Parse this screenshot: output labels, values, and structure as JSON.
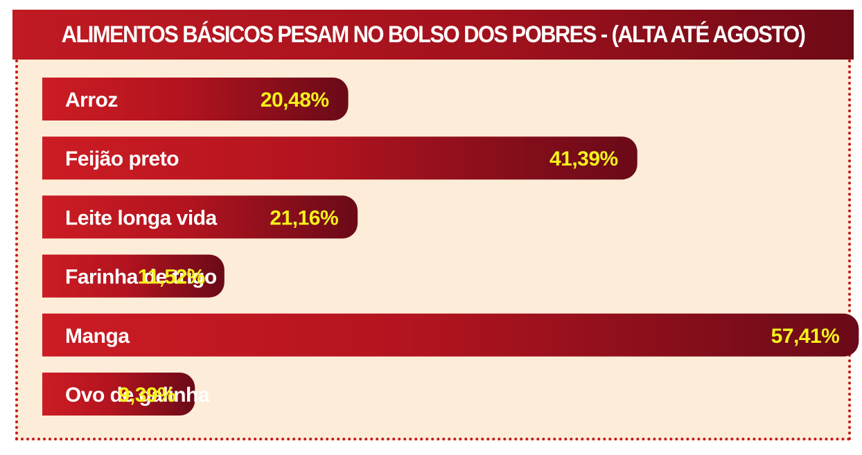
{
  "chart_data": {
    "type": "bar",
    "orientation": "horizontal",
    "title": "ALIMENTOS BÁSICOS PESAM NO BOLSO DOS POBRES - (ALTA ATÉ AGOSTO)",
    "categories": [
      "Arroz",
      "Feijão preto",
      "Leite longa vida",
      "Farinha de trigo",
      "Manga",
      "Ovo de galinha"
    ],
    "values": [
      20.48,
      41.39,
      21.16,
      11.52,
      57.41,
      9.39
    ],
    "value_labels": [
      "20,48%",
      "41,39%",
      "21,16%",
      "11,52%",
      "57,41%",
      "9,39%"
    ],
    "unit": "%",
    "grid": false,
    "legend": "none",
    "colors": {
      "bar_start": "#cc1c24",
      "bar_end": "#6a0a18",
      "label_text": "#ffffff",
      "value_text": "#f5f21a",
      "background": "#fdecd8",
      "border": "#c4161c"
    }
  }
}
